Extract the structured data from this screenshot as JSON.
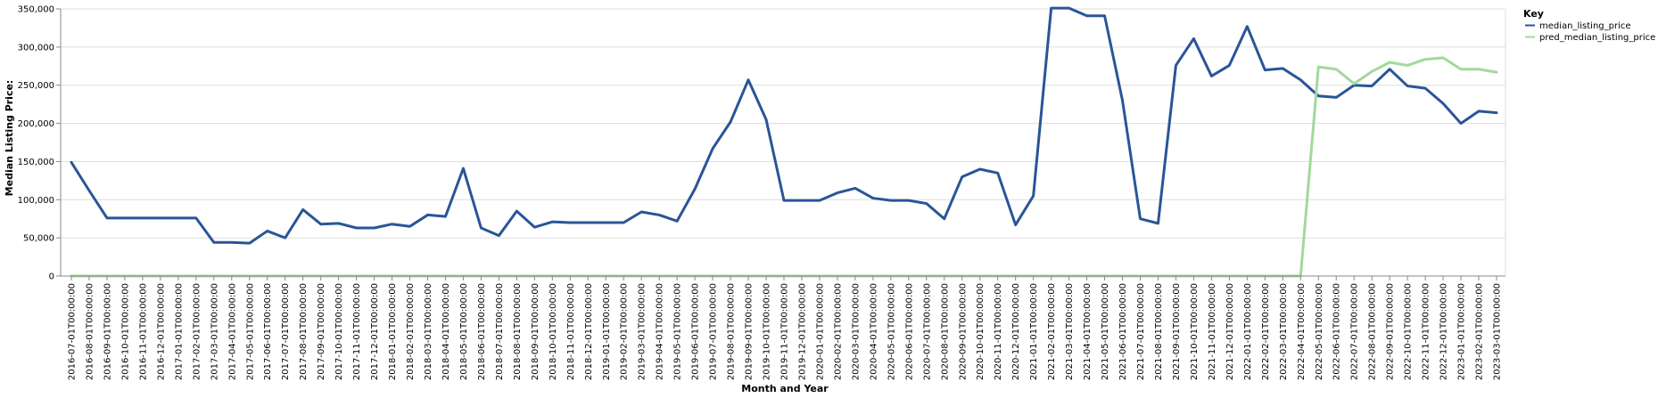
{
  "chart_data": {
    "type": "line",
    "xlabel": "Month and Year",
    "ylabel": "Median Listing Price:",
    "ylim": [
      0,
      350000
    ],
    "y_ticks": [
      0,
      50000,
      100000,
      150000,
      200000,
      250000,
      300000,
      350000
    ],
    "y_tick_labels": [
      "0",
      "50,000",
      "100,000",
      "150,000",
      "200,000",
      "250,000",
      "300,000",
      "350,000"
    ],
    "grid": true,
    "legend": {
      "title": "Key",
      "position": "top-right"
    },
    "categories": [
      "2016-07-01T00:00:00",
      "2016-08-01T00:00:00",
      "2016-09-01T00:00:00",
      "2016-10-01T00:00:00",
      "2016-11-01T00:00:00",
      "2016-12-01T00:00:00",
      "2017-01-01T00:00:00",
      "2017-02-01T00:00:00",
      "2017-03-01T00:00:00",
      "2017-04-01T00:00:00",
      "2017-05-01T00:00:00",
      "2017-06-01T00:00:00",
      "2017-07-01T00:00:00",
      "2017-08-01T00:00:00",
      "2017-09-01T00:00:00",
      "2017-10-01T00:00:00",
      "2017-11-01T00:00:00",
      "2017-12-01T00:00:00",
      "2018-01-01T00:00:00",
      "2018-02-01T00:00:00",
      "2018-03-01T00:00:00",
      "2018-04-01T00:00:00",
      "2018-05-01T00:00:00",
      "2018-06-01T00:00:00",
      "2018-07-01T00:00:00",
      "2018-08-01T00:00:00",
      "2018-09-01T00:00:00",
      "2018-10-01T00:00:00",
      "2018-11-01T00:00:00",
      "2018-12-01T00:00:00",
      "2019-01-01T00:00:00",
      "2019-02-01T00:00:00",
      "2019-03-01T00:00:00",
      "2019-04-01T00:00:00",
      "2019-05-01T00:00:00",
      "2019-06-01T00:00:00",
      "2019-07-01T00:00:00",
      "2019-08-01T00:00:00",
      "2019-09-01T00:00:00",
      "2019-10-01T00:00:00",
      "2019-11-01T00:00:00",
      "2019-12-01T00:00:00",
      "2020-01-01T00:00:00",
      "2020-02-01T00:00:00",
      "2020-03-01T00:00:00",
      "2020-04-01T00:00:00",
      "2020-05-01T00:00:00",
      "2020-06-01T00:00:00",
      "2020-07-01T00:00:00",
      "2020-08-01T00:00:00",
      "2020-09-01T00:00:00",
      "2020-10-01T00:00:00",
      "2020-11-01T00:00:00",
      "2020-12-01T00:00:00",
      "2021-01-01T00:00:00",
      "2021-02-01T00:00:00",
      "2021-03-01T00:00:00",
      "2021-04-01T00:00:00",
      "2021-05-01T00:00:00",
      "2021-06-01T00:00:00",
      "2021-07-01T00:00:00",
      "2021-08-01T00:00:00",
      "2021-09-01T00:00:00",
      "2021-10-01T00:00:00",
      "2021-11-01T00:00:00",
      "2021-12-01T00:00:00",
      "2022-01-01T00:00:00",
      "2022-02-01T00:00:00",
      "2022-03-01T00:00:00",
      "2022-04-01T00:00:00",
      "2022-05-01T00:00:00",
      "2022-06-01T00:00:00",
      "2022-07-01T00:00:00",
      "2022-08-01T00:00:00",
      "2022-09-01T00:00:00",
      "2022-10-01T00:00:00",
      "2022-11-01T00:00:00",
      "2022-12-01T00:00:00",
      "2023-01-01T00:00:00",
      "2023-02-01T00:00:00",
      "2023-03-01T00:00:00"
    ],
    "series": [
      {
        "name": "median_listing_price",
        "color": "#2a5597",
        "values": [
          149000,
          112000,
          76000,
          76000,
          76000,
          76000,
          76000,
          76000,
          44000,
          44000,
          43000,
          59000,
          50000,
          87000,
          68000,
          69000,
          63000,
          63000,
          68000,
          65000,
          80000,
          78000,
          141000,
          63000,
          53000,
          85000,
          64000,
          71000,
          70000,
          70000,
          70000,
          70000,
          84000,
          80000,
          72000,
          114000,
          167000,
          202000,
          257000,
          205000,
          99000,
          99000,
          99000,
          109000,
          115000,
          102000,
          99000,
          99000,
          95000,
          75000,
          130000,
          140000,
          135000,
          67000,
          105000,
          351000,
          351000,
          341000,
          341000,
          230000,
          75000,
          69000,
          276000,
          311000,
          262000,
          276000,
          327000,
          270000,
          272000,
          257000,
          236000,
          234000,
          250000,
          249000,
          271000,
          249000,
          246000,
          226000,
          200000,
          216000,
          214000
        ]
      },
      {
        "name": "pred_median_listing_price",
        "color": "#a2d99b",
        "values": [
          0,
          0,
          0,
          0,
          0,
          0,
          0,
          0,
          0,
          0,
          0,
          0,
          0,
          0,
          0,
          0,
          0,
          0,
          0,
          0,
          0,
          0,
          0,
          0,
          0,
          0,
          0,
          0,
          0,
          0,
          0,
          0,
          0,
          0,
          0,
          0,
          0,
          0,
          0,
          0,
          0,
          0,
          0,
          0,
          0,
          0,
          0,
          0,
          0,
          0,
          0,
          0,
          0,
          0,
          0,
          0,
          0,
          0,
          0,
          0,
          0,
          0,
          0,
          0,
          0,
          0,
          0,
          0,
          0,
          0,
          274000,
          271000,
          252000,
          268000,
          280000,
          276000,
          284000,
          286000,
          271000,
          271000,
          267000
        ]
      }
    ]
  }
}
